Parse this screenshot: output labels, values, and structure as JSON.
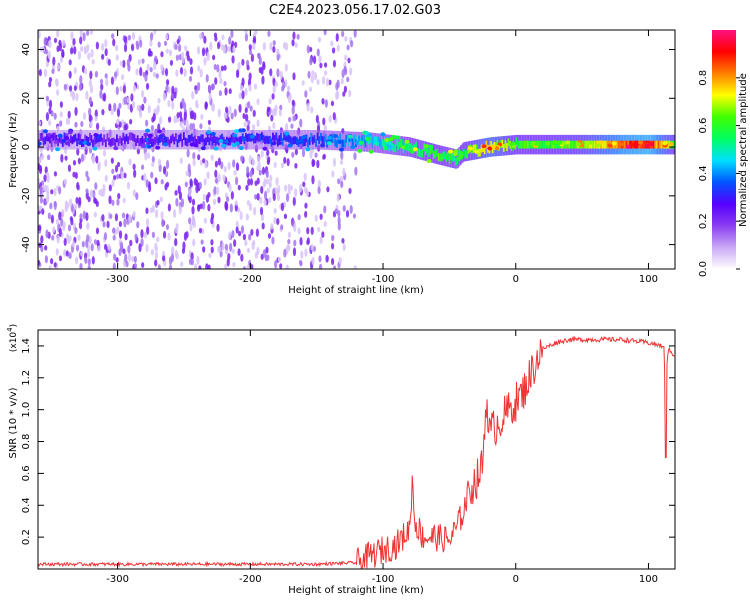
{
  "title": "C2E4.2023.056.17.02.G03",
  "chart_data": [
    {
      "type": "heatmap",
      "xlabel": "Height of straight line (km)",
      "ylabel": "Frequency (Hz)",
      "xlim": [
        -360,
        120
      ],
      "ylim": [
        -50,
        48
      ],
      "xticks": [
        -300,
        -200,
        -100,
        0,
        100
      ],
      "yticks": [
        -40,
        -20,
        0,
        20,
        40
      ],
      "grid": false,
      "colorbar": {
        "label": "Normalized spectral amplitude",
        "range": [
          0,
          1
        ],
        "ticks": [
          "0.0",
          "0.2",
          "0.4",
          "0.6",
          "0.8"
        ],
        "colors": [
          "#ffffff",
          "#c9a8f5",
          "#8a3cf0",
          "#5500ff",
          "#0055ff",
          "#00e0ff",
          "#00ff60",
          "#40ff00",
          "#ffff00",
          "#ff8000",
          "#ff0000",
          "#ff1080"
        ]
      },
      "ridge": {
        "x": [
          -360,
          -300,
          -250,
          -200,
          -150,
          -110,
          -80,
          -60,
          -45,
          -40,
          -20,
          0,
          20,
          50,
          80,
          100,
          120
        ],
        "frequency": [
          3,
          3,
          3,
          3,
          3,
          2,
          0,
          -3,
          -5,
          -2,
          0,
          1,
          1,
          1,
          1,
          1,
          1
        ],
        "amplitude": [
          0.25,
          0.25,
          0.28,
          0.3,
          0.35,
          0.45,
          0.55,
          0.6,
          0.55,
          0.6,
          0.75,
          0.6,
          0.6,
          0.65,
          0.85,
          0.9,
          0.6
        ]
      },
      "noise_region_x": [
        -360,
        -130
      ]
    },
    {
      "type": "line",
      "xlabel": "Height of straight line (km)",
      "ylabel": "SNR (10 * v/v)",
      "yscale_label": "(x10",
      "yscale_exp": "4",
      "yscale_close": ")",
      "xlim": [
        -360,
        120
      ],
      "ylim": [
        0,
        1.5
      ],
      "xticks": [
        -300,
        -200,
        -100,
        0,
        100
      ],
      "yticks": [
        0.2,
        0.4,
        0.6,
        0.8,
        1.0,
        1.2,
        1.4
      ],
      "ytick_labels": [
        "0.2",
        "0.4",
        "0.6",
        "0.8",
        "1.0",
        "1.2",
        "1.4"
      ],
      "color": "#ee3333",
      "series": [
        {
          "name": "SNR",
          "x": [
            -360,
            -300,
            -250,
            -200,
            -150,
            -120,
            -100,
            -90,
            -80,
            -78,
            -76,
            -70,
            -60,
            -50,
            -45,
            -40,
            -35,
            -30,
            -25,
            -22,
            -20,
            -15,
            -10,
            -5,
            0,
            5,
            10,
            15,
            20,
            30,
            40,
            50,
            60,
            70,
            80,
            90,
            100,
            110,
            112,
            113,
            114,
            115,
            117,
            120
          ],
          "y": [
            0.03,
            0.03,
            0.03,
            0.03,
            0.03,
            0.04,
            0.12,
            0.15,
            0.25,
            0.55,
            0.3,
            0.2,
            0.2,
            0.18,
            0.25,
            0.35,
            0.5,
            0.55,
            0.65,
            1.1,
            0.85,
            0.9,
            0.95,
            1.0,
            1.05,
            1.1,
            1.2,
            1.3,
            1.38,
            1.42,
            1.44,
            1.44,
            1.44,
            1.44,
            1.44,
            1.43,
            1.42,
            1.4,
            1.38,
            0.7,
            1.3,
            1.38,
            1.36,
            1.34
          ]
        }
      ]
    }
  ]
}
